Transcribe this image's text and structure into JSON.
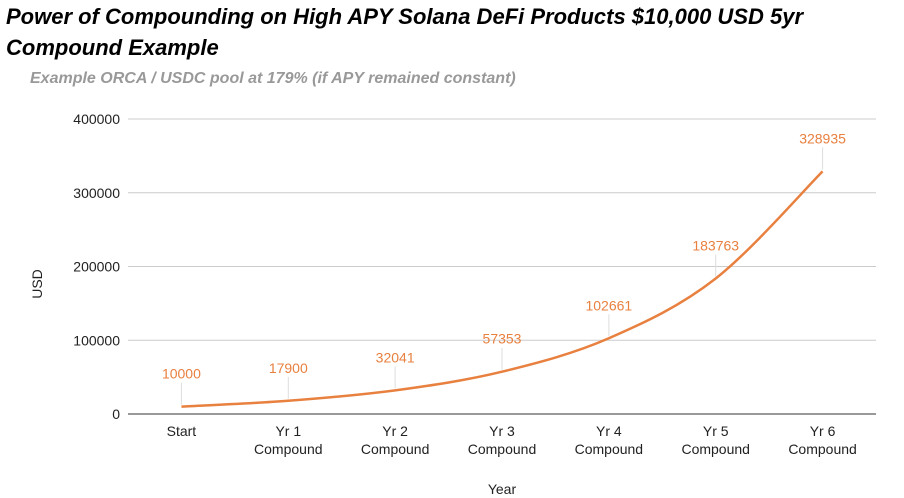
{
  "chart_data": {
    "type": "line",
    "title": "Power of Compounding on High APY Solana DeFi Products $10,000 USD 5yr Compound Example",
    "subtitle": "Example ORCA / USDC pool at 179%  (if APY remained constant)",
    "xlabel": "Year",
    "ylabel": "USD",
    "ylim": [
      0,
      400000
    ],
    "yticks": [
      "0",
      "100000",
      "200000",
      "300000",
      "400000"
    ],
    "grid": true,
    "legend": "none",
    "categories": [
      [
        "Start"
      ],
      [
        "Yr 1",
        "Compound"
      ],
      [
        "Yr 2",
        "Compound"
      ],
      [
        "Yr 3",
        "Compound"
      ],
      [
        "Yr 4",
        "Compound"
      ],
      [
        "Yr 5",
        "Compound"
      ],
      [
        "Yr 6",
        "Compound"
      ]
    ],
    "series": [
      {
        "values": [
          10000,
          17900,
          32041,
          57353,
          102661,
          183763,
          328935
        ],
        "labels": [
          "10000",
          "17900",
          "32041",
          "57353",
          "102661",
          "183763",
          "328935"
        ],
        "color": "#e8803f"
      }
    ],
    "colors": {
      "line": "#e8803f",
      "grid": "#cccccc",
      "axis": "#333333"
    }
  }
}
